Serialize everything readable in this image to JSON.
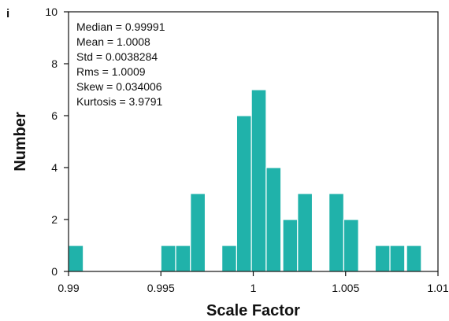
{
  "panel_label": "i",
  "chart_data": {
    "type": "bar",
    "title": "",
    "xlabel": "Scale Factor",
    "ylabel": "Number",
    "xlim": [
      0.99,
      1.01
    ],
    "ylim": [
      0,
      10
    ],
    "bin_width": 0.0008,
    "bins": [
      {
        "x": 0.9904,
        "y": 1
      },
      {
        "x": 0.9954,
        "y": 1
      },
      {
        "x": 0.9962,
        "y": 1
      },
      {
        "x": 0.997,
        "y": 3
      },
      {
        "x": 0.9987,
        "y": 1
      },
      {
        "x": 0.9995,
        "y": 6
      },
      {
        "x": 1.0003,
        "y": 7
      },
      {
        "x": 1.0011,
        "y": 4
      },
      {
        "x": 1.002,
        "y": 2
      },
      {
        "x": 1.0028,
        "y": 3
      },
      {
        "x": 1.0045,
        "y": 3
      },
      {
        "x": 1.0053,
        "y": 2
      },
      {
        "x": 1.007,
        "y": 1
      },
      {
        "x": 1.0078,
        "y": 1
      },
      {
        "x": 1.0087,
        "y": 1
      }
    ],
    "x_ticks": [
      0.99,
      0.995,
      1,
      1.005,
      1.01
    ],
    "x_tick_labels": [
      "0.99",
      "0.995",
      "1",
      "1.005",
      "1.01"
    ],
    "y_ticks": [
      0,
      2,
      4,
      6,
      8,
      10
    ],
    "y_tick_labels": [
      "0",
      "2",
      "4",
      "6",
      "8",
      "10"
    ],
    "stats": [
      "Median = 0.99991",
      "Mean = 1.0008",
      "Std = 0.0038284",
      "Rms = 1.0009",
      "Skew = 0.034006",
      "Kurtosis = 3.9791"
    ],
    "bar_color": "#20b2aa",
    "bar_edge_color": "#ffffff",
    "grid": false
  }
}
